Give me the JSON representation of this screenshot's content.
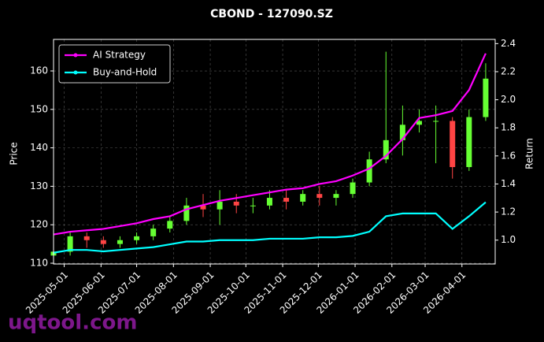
{
  "chart_data": {
    "type": "candlestick",
    "title": "CBOND - 127090.SZ",
    "ylabel": "Price",
    "y2label": "Return",
    "watermark": "uqtool.com",
    "x": [
      "2025-04-22",
      "2025-05-06",
      "2025-05-20",
      "2025-06-03",
      "2025-06-17",
      "2025-07-01",
      "2025-07-15",
      "2025-07-29",
      "2025-08-12",
      "2025-08-26",
      "2025-09-09",
      "2025-09-23",
      "2025-10-07",
      "2025-10-21",
      "2025-11-04",
      "2025-11-18",
      "2025-12-02",
      "2025-12-16",
      "2025-12-30",
      "2026-01-13",
      "2026-01-27",
      "2026-02-10",
      "2026-02-24",
      "2026-03-10",
      "2026-03-24",
      "2026-04-07",
      "2026-04-21"
    ],
    "open": [
      112,
      113,
      117,
      116,
      115,
      116,
      117,
      119,
      121,
      125,
      124,
      126,
      125,
      125,
      127,
      126,
      128,
      127,
      128,
      131,
      137,
      142,
      146,
      147,
      147,
      135,
      148
    ],
    "high": [
      117,
      118,
      118,
      117,
      117,
      118,
      120,
      122,
      127,
      128,
      129,
      128,
      127,
      129,
      129,
      129,
      130,
      129,
      132,
      139,
      165,
      151,
      150,
      151,
      148,
      150,
      162
    ],
    "low": [
      111,
      112,
      114,
      114,
      114,
      115,
      116,
      118,
      120,
      122,
      120,
      123,
      123,
      124,
      124,
      125,
      125,
      125,
      127,
      130,
      136,
      138,
      144,
      136,
      132,
      134,
      147
    ],
    "close": [
      113,
      117,
      116,
      115,
      116,
      117,
      119,
      121,
      125,
      124,
      126,
      125,
      125,
      127,
      126,
      128,
      127,
      128,
      131,
      137,
      142,
      146,
      147,
      147,
      135,
      148,
      158
    ],
    "up_color": "#66ff33",
    "down_color": "#ff4444",
    "series": [
      {
        "name": "AI Strategy",
        "color": "#ff00ff",
        "axis": "y2",
        "values": [
          1.04,
          1.06,
          1.07,
          1.08,
          1.1,
          1.12,
          1.15,
          1.17,
          1.22,
          1.25,
          1.28,
          1.3,
          1.32,
          1.34,
          1.36,
          1.37,
          1.4,
          1.42,
          1.46,
          1.51,
          1.6,
          1.72,
          1.87,
          1.89,
          1.92,
          2.07,
          2.33
        ]
      },
      {
        "name": "Buy-and-Hold",
        "color": "#00ffff",
        "axis": "y2",
        "values": [
          0.91,
          0.93,
          0.93,
          0.92,
          0.93,
          0.94,
          0.95,
          0.97,
          0.99,
          0.99,
          1.0,
          1.0,
          1.0,
          1.01,
          1.01,
          1.01,
          1.02,
          1.02,
          1.03,
          1.06,
          1.17,
          1.19,
          1.19,
          1.19,
          1.08,
          1.17,
          1.27
        ]
      }
    ],
    "xlim": [
      "2025-04-22",
      "2026-04-29"
    ],
    "xticks": [
      "2025-05-01",
      "2025-06-01",
      "2025-07-01",
      "2025-08-01",
      "2025-09-01",
      "2025-10-01",
      "2025-11-01",
      "2025-12-01",
      "2026-01-01",
      "2026-02-01",
      "2026-03-01",
      "2026-04-01"
    ],
    "ylim": [
      109.8,
      168.2
    ],
    "yticks": [
      110,
      120,
      130,
      140,
      150,
      160
    ],
    "y2lim": [
      0.83,
      2.43
    ],
    "y2ticks": [
      {
        "value": 1,
        "label": "1.0"
      },
      1.2,
      1.4,
      1.6,
      1.8,
      {
        "value": 2,
        "label": "2.0"
      },
      2.2,
      2.4
    ],
    "grid": true,
    "legend": "upper left"
  }
}
